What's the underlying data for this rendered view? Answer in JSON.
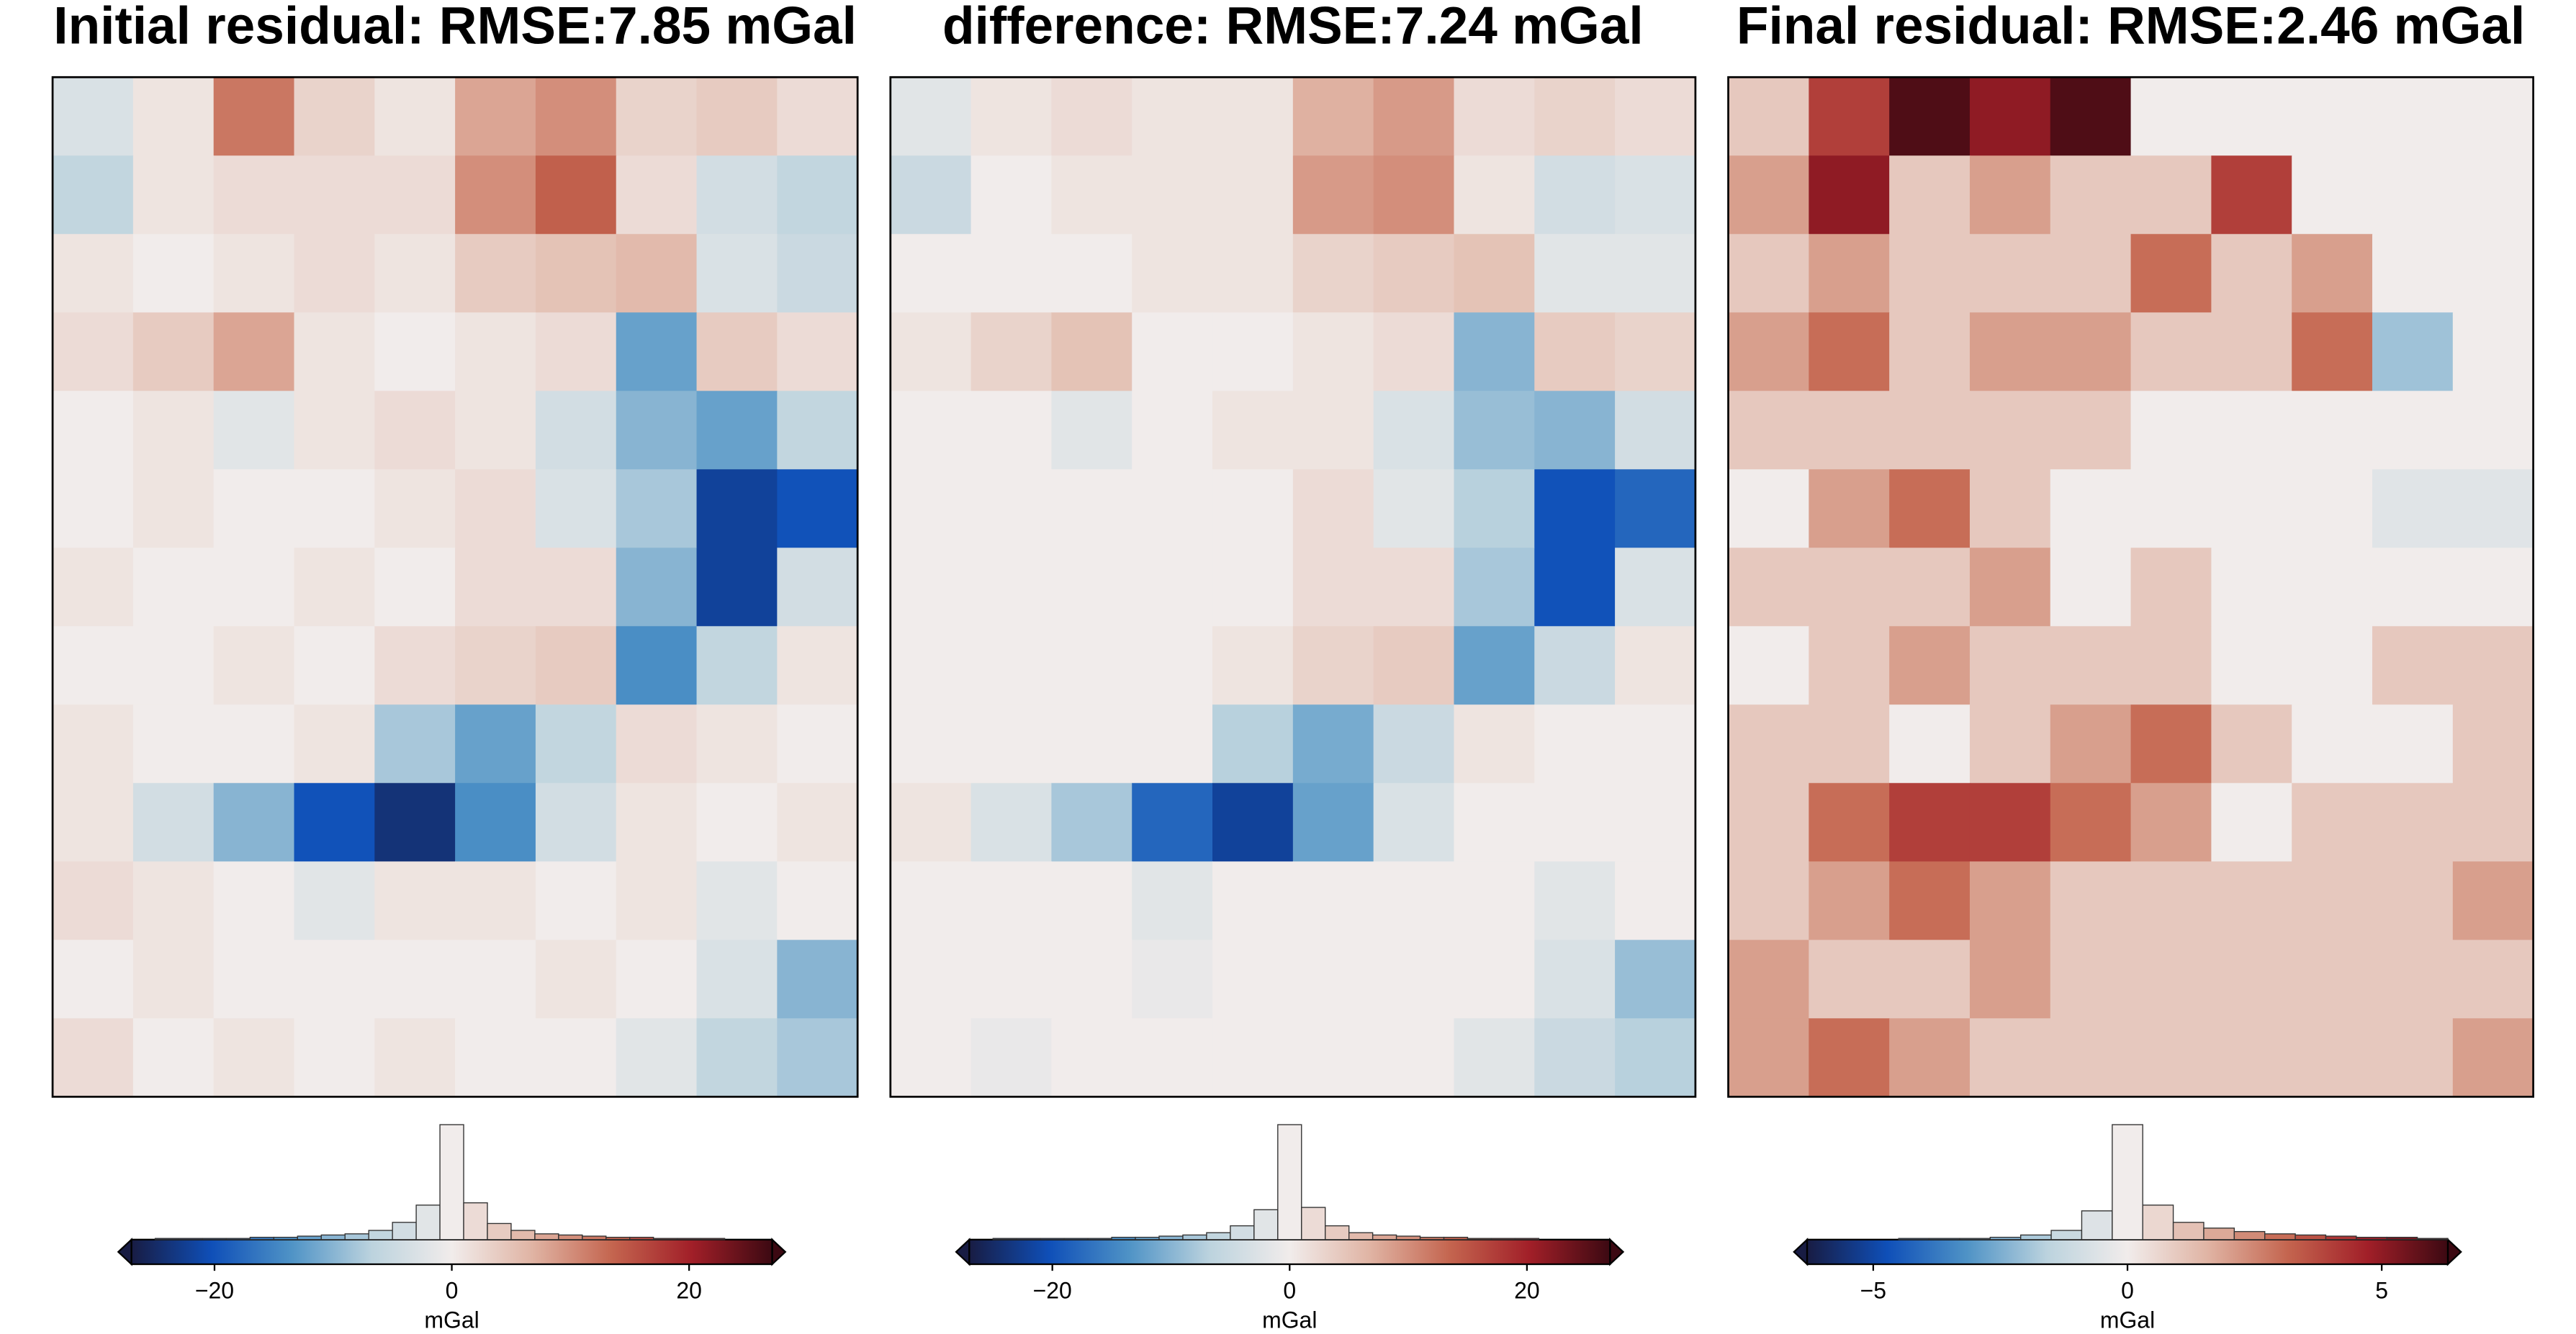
{
  "chart_data": [
    {
      "type": "heatmap",
      "title": "Initial residual: RMSE:7.85 mGal",
      "colorbar_label": "mGal",
      "zlim": [
        -27,
        27
      ],
      "colorbar_ticks": [
        {
          "value": -20,
          "label": "−20"
        },
        0,
        20
      ],
      "colorscale": [
        "#181c43",
        "#0f4fb8",
        "#4f93c6",
        "#bcd3de",
        "#f1eceb",
        "#e0b4a4",
        "#c4654f",
        "#a11f28",
        "#3c0912"
      ],
      "z": [
        [
          -3,
          1,
          12,
          3,
          1,
          8,
          10,
          3,
          4,
          2
        ],
        [
          -6,
          1,
          2,
          2,
          2,
          10,
          14,
          2,
          -4,
          -6
        ],
        [
          1,
          0,
          1,
          2,
          1,
          4,
          5,
          6,
          -3,
          -5
        ],
        [
          2,
          4,
          8,
          1,
          0,
          1,
          2,
          -12,
          4,
          2
        ],
        [
          0,
          1,
          -2,
          1,
          2,
          1,
          -4,
          -10,
          -12,
          -6
        ],
        [
          0,
          1,
          0,
          0,
          1,
          2,
          -3,
          -8,
          -22,
          -20
        ],
        [
          1,
          0,
          0,
          1,
          0,
          2,
          2,
          -10,
          -22,
          -4
        ],
        [
          0,
          0,
          1,
          0,
          2,
          3,
          4,
          -14,
          -6,
          1
        ],
        [
          1,
          0,
          0,
          1,
          -8,
          -12,
          -6,
          2,
          1,
          0
        ],
        [
          1,
          -4,
          -10,
          -20,
          -24,
          -14,
          -4,
          1,
          0,
          1
        ],
        [
          2,
          1,
          0,
          -2,
          1,
          1,
          0,
          1,
          -2,
          0
        ],
        [
          0,
          1,
          0,
          0,
          0,
          0,
          1,
          0,
          -3,
          -10
        ],
        [
          2,
          0,
          1,
          0,
          1,
          0,
          0,
          -2,
          -6,
          -8
        ]
      ],
      "bins": [
        -27,
        -25,
        -23,
        -21,
        -19,
        -17,
        -15,
        -13,
        -11,
        -9,
        -7,
        -5,
        -3,
        -1,
        1,
        3,
        5,
        7,
        9,
        11,
        13,
        15,
        17,
        19,
        21,
        23,
        25,
        27
      ],
      "counts": [
        0,
        1,
        1,
        1,
        1,
        2,
        2,
        3,
        4,
        5,
        8,
        15,
        30,
        100,
        32,
        14,
        8,
        5,
        4,
        3,
        2,
        2,
        1,
        1,
        1,
        0,
        0
      ]
    },
    {
      "type": "heatmap",
      "title": "difference: RMSE:7.24 mGal",
      "colorbar_label": "mGal",
      "zlim": [
        -27,
        27
      ],
      "colorbar_ticks": [
        {
          "value": -20,
          "label": "−20"
        },
        0,
        20
      ],
      "colorscale": [
        "#181c43",
        "#0f4fb8",
        "#4f93c6",
        "#bcd3de",
        "#f1eceb",
        "#e0b4a4",
        "#c4654f",
        "#a11f28",
        "#3c0912"
      ],
      "z": [
        [
          -2,
          1,
          2,
          1,
          1,
          7,
          9,
          2,
          3,
          2
        ],
        [
          -5,
          0,
          1,
          1,
          1,
          9,
          10,
          1,
          -4,
          -3
        ],
        [
          0,
          0,
          0,
          1,
          1,
          3,
          4,
          5,
          -2,
          -2
        ],
        [
          1,
          3,
          5,
          0,
          0,
          1,
          2,
          -10,
          4,
          3
        ],
        [
          0,
          0,
          -2,
          0,
          1,
          1,
          -3,
          -9,
          -10,
          -4
        ],
        [
          0,
          0,
          0,
          0,
          0,
          2,
          -2,
          -7,
          -20,
          -18
        ],
        [
          0,
          0,
          0,
          0,
          0,
          2,
          2,
          -8,
          -20,
          -3
        ],
        [
          0,
          0,
          0,
          0,
          1,
          3,
          4,
          -12,
          -5,
          1
        ],
        [
          0,
          0,
          0,
          0,
          -7,
          -11,
          -5,
          1,
          0,
          0
        ],
        [
          1,
          -3,
          -8,
          -18,
          -22,
          -12,
          -3,
          0,
          0,
          0
        ],
        [
          0,
          0,
          0,
          -2,
          0,
          0,
          0,
          0,
          -2,
          0
        ],
        [
          0,
          0,
          0,
          -1,
          0,
          0,
          0,
          0,
          -3,
          -9
        ],
        [
          0,
          -1,
          0,
          0,
          0,
          0,
          0,
          -2,
          -5,
          -7
        ]
      ],
      "bins": [
        -27,
        -25,
        -23,
        -21,
        -19,
        -17,
        -15,
        -13,
        -11,
        -9,
        -7,
        -5,
        -3,
        -1,
        1,
        3,
        5,
        7,
        9,
        11,
        13,
        15,
        17,
        19,
        21,
        23,
        25,
        27
      ],
      "counts": [
        0,
        1,
        1,
        1,
        1,
        1,
        2,
        2,
        3,
        4,
        6,
        12,
        26,
        100,
        28,
        12,
        6,
        4,
        3,
        2,
        2,
        1,
        1,
        1,
        0,
        0,
        0
      ]
    },
    {
      "type": "heatmap",
      "title": "Final residual: RMSE:2.46 mGal",
      "colorbar_label": "mGal",
      "zlim": [
        -6.3,
        6.3
      ],
      "colorbar_ticks": [
        {
          "value": -5,
          "label": "−5"
        },
        0,
        5
      ],
      "colorscale": [
        "#181c43",
        "#0f4fb8",
        "#4f93c6",
        "#bcd3de",
        "#f1eceb",
        "#e0b4a4",
        "#c4654f",
        "#a11f28",
        "#3c0912"
      ],
      "z": [
        [
          1,
          4,
          6,
          5,
          6,
          0,
          0,
          0,
          0,
          0
        ],
        [
          2,
          5,
          1,
          2,
          1,
          1,
          4,
          0,
          0,
          0
        ],
        [
          1,
          2,
          1,
          1,
          1,
          3,
          1,
          2,
          0,
          0
        ],
        [
          2,
          3,
          1,
          2,
          2,
          1,
          1,
          3,
          -2,
          0
        ],
        [
          1,
          1,
          1,
          1,
          1,
          0,
          0,
          0,
          0,
          0
        ],
        [
          0,
          2,
          3,
          1,
          0,
          0,
          0,
          0,
          -0.5,
          -0.5
        ],
        [
          1,
          1,
          1,
          2,
          0,
          1,
          0,
          0,
          0,
          0
        ],
        [
          0,
          1,
          2,
          1,
          1,
          1,
          0,
          0,
          1,
          1
        ],
        [
          1,
          1,
          0,
          1,
          2,
          3,
          1,
          0,
          0,
          1
        ],
        [
          1,
          3,
          4,
          4,
          3,
          2,
          0,
          1,
          1,
          1
        ],
        [
          1,
          2,
          3,
          2,
          1,
          1,
          1,
          1,
          1,
          2
        ],
        [
          2,
          1,
          1,
          2,
          1,
          1,
          1,
          1,
          1,
          1
        ],
        [
          2,
          3,
          2,
          1,
          1,
          1,
          1,
          1,
          1,
          2
        ]
      ],
      "bins": [
        -6.3,
        -5.7,
        -5.1,
        -4.5,
        -3.9,
        -3.3,
        -2.7,
        -2.1,
        -1.5,
        -0.9,
        -0.3,
        0.3,
        0.9,
        1.5,
        2.1,
        2.7,
        3.3,
        3.9,
        4.5,
        5.1,
        5.7,
        6.3
      ],
      "counts": [
        0,
        0,
        0,
        1,
        1,
        1,
        2,
        4,
        8,
        25,
        100,
        30,
        15,
        10,
        7,
        5,
        4,
        3,
        2,
        2,
        1
      ]
    }
  ]
}
